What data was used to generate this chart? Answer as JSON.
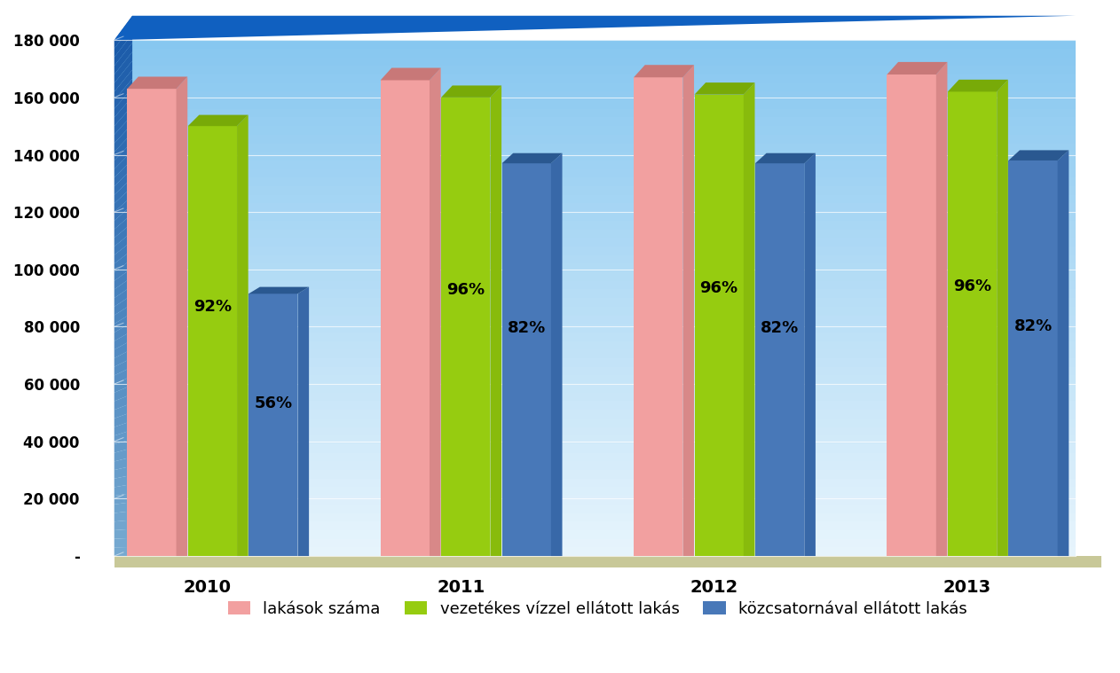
{
  "years": [
    "2010",
    "2011",
    "2012",
    "2013"
  ],
  "lakas_szama": [
    163000,
    166000,
    167000,
    168000
  ],
  "vezetékes": [
    150000,
    160000,
    161000,
    162000
  ],
  "kozcsatorna": [
    91500,
    137000,
    137000,
    138000
  ],
  "vez_pct": [
    "92%",
    "96%",
    "96%",
    "96%"
  ],
  "koz_pct": [
    "56%",
    "82%",
    "82%",
    "82%"
  ],
  "bar_colors": {
    "lakas_face": "#F2A0A0",
    "lakas_top": "#C87878",
    "lakas_side": "#D88888",
    "vez_face": "#96CC10",
    "vez_top": "#78AA08",
    "vez_side": "#88BB0C",
    "koz_face": "#4878B8",
    "koz_top": "#2A5890",
    "koz_side": "#3868A8"
  },
  "bg_blue_top": "#1860C8",
  "bg_blue_bottom": "#88C8E8",
  "bg_lightblue_top": "#A8D8F0",
  "bg_lightblue_bottom": "#E8F4FC",
  "floor_color": "#C8C898",
  "wall_left_top": "#2858A8",
  "wall_left_bottom": "#7AAAD0",
  "grid_color": "#FFFFFF",
  "yticks": [
    0,
    20000,
    40000,
    60000,
    80000,
    100000,
    120000,
    140000,
    160000,
    180000
  ],
  "ytick_labels": [
    "-",
    "20 000",
    "40 000",
    "60 000",
    "80 000",
    "100 000",
    "120 000",
    "140 000",
    "160 000",
    "180 000"
  ],
  "legend": [
    "lakások száma",
    "vezetékes vízzel ellátott lakás",
    "közcsatornával ellátott lakás"
  ],
  "legend_colors": [
    "#F2A0A0",
    "#96CC10",
    "#4878B8"
  ]
}
